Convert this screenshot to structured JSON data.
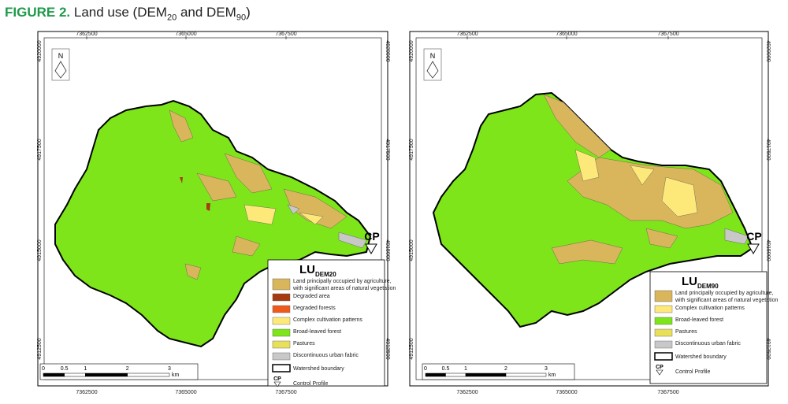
{
  "figure": {
    "label": "FIGURE 2.",
    "caption": [
      "Land use (DEM",
      "20",
      " and DEM",
      "90",
      ")"
    ]
  },
  "maps": [
    {
      "x_labels": [
        7362500,
        7365000,
        7367500
      ],
      "y_labels": [
        4920000,
        4917500,
        4915000,
        4912500
      ],
      "north": "N",
      "cp": "CP",
      "legend": {
        "title": "LU",
        "subscript": "DEM20",
        "items": [
          {
            "label": "Land principally occupied by agriculture,",
            "label2": "with significant areas of natural vegetation",
            "color": "#d9b65b"
          },
          {
            "label": "Degraded area",
            "color": "#a83a12"
          },
          {
            "label": "Degraded forests",
            "color": "#ef5a1c"
          },
          {
            "label": "Complex cultivation patterns",
            "color": "#fde97a"
          },
          {
            "label": "Broad-leaved forest",
            "color": "#7ee51a"
          },
          {
            "label": "Pastures",
            "color": "#e9e05a"
          },
          {
            "label": "Discontinuous urban fabric",
            "color": "#c8c8c8"
          }
        ],
        "boundary": "Watershed boundary",
        "control": "Control Profile"
      },
      "scale": [
        0,
        0.5,
        1,
        2,
        3
      ],
      "scale_unit": "km"
    },
    {
      "x_labels": [
        7362500,
        7365000,
        7367500
      ],
      "y_labels": [
        4920000,
        4917500,
        4915000,
        4912500
      ],
      "north": "N",
      "cp": "CP",
      "legend": {
        "title": "LU",
        "subscript": "DEM90",
        "items": [
          {
            "label": "Land principally occupied by agriculture,",
            "label2": "with significant areas of natural vegetation",
            "color": "#d9b65b"
          },
          {
            "label": "Complex cultivation patterns",
            "color": "#fde97a"
          },
          {
            "label": "Broad-leaved forest",
            "color": "#7ee51a"
          },
          {
            "label": "Pastures",
            "color": "#e9e05a"
          },
          {
            "label": "Discontinuous urban fabric",
            "color": "#c8c8c8"
          }
        ],
        "boundary": "Watershed boundary",
        "control": "Control Profile"
      },
      "scale": [
        0,
        0.5,
        1,
        2,
        3
      ],
      "scale_unit": "km"
    }
  ]
}
